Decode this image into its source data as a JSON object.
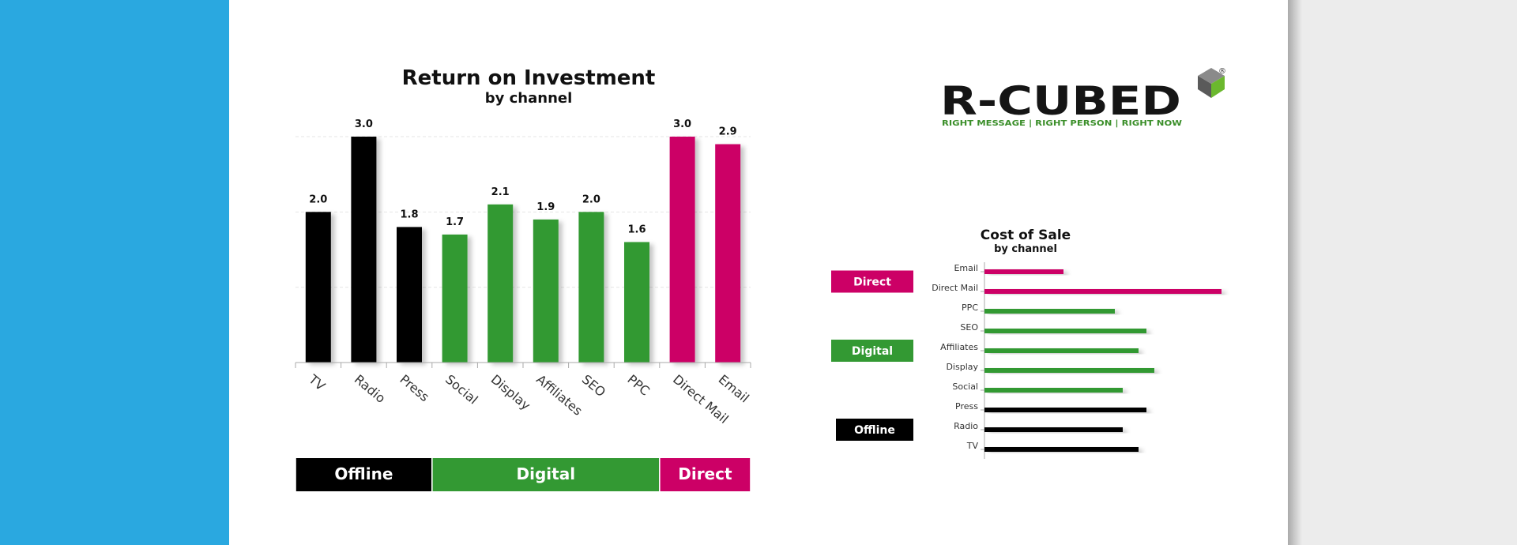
{
  "colors": {
    "background_left": "#2aa8e0",
    "card": "#ffffff",
    "offline": "#000000",
    "digital": "#339933",
    "direct": "#cc0066",
    "grid": "#e5e5e5",
    "axis": "#aaaaaa"
  },
  "logo": {
    "text": "R-CUBED",
    "registered": "®",
    "tagline": "RIGHT MESSAGE | RIGHT PERSON | RIGHT NOW",
    "icon": "green-cube-icon"
  },
  "chart_data": [
    {
      "type": "bar",
      "title": "Return on Investment",
      "subtitle": "by channel",
      "categories": [
        "TV",
        "Radio",
        "Press",
        "Social",
        "Display",
        "Affiliates",
        "SEO",
        "PPC",
        "Direct Mail",
        "Email"
      ],
      "values": [
        2.0,
        3.0,
        1.8,
        1.7,
        2.1,
        1.9,
        2.0,
        1.6,
        3.0,
        2.9
      ],
      "value_labels": [
        "2.0",
        "3.0",
        "1.8",
        "1.7",
        "2.1",
        "1.9",
        "2.0",
        "1.6",
        "3.0",
        "2.9"
      ],
      "groups": [
        "offline",
        "offline",
        "offline",
        "digital",
        "digital",
        "digital",
        "digital",
        "digital",
        "direct",
        "direct"
      ],
      "ylim": [
        0,
        3
      ],
      "grid": true,
      "group_legend": [
        {
          "label": "Offline",
          "group": "offline",
          "from": 0,
          "to": 2
        },
        {
          "label": "Digital",
          "group": "digital",
          "from": 3,
          "to": 7
        },
        {
          "label": "Direct",
          "group": "direct",
          "from": 8,
          "to": 9
        }
      ]
    },
    {
      "type": "bar",
      "orientation": "horizontal",
      "title": "Cost of Sale",
      "subtitle": "by channel",
      "categories": [
        "Email",
        "Direct Mail",
        "PPC",
        "SEO",
        "Affiliates",
        "Display",
        "Social",
        "Press",
        "Radio",
        "TV"
      ],
      "values": [
        20,
        60,
        33,
        41,
        39,
        43,
        35,
        41,
        35,
        39
      ],
      "groups": [
        "direct",
        "direct",
        "digital",
        "digital",
        "digital",
        "digital",
        "digital",
        "offline",
        "offline",
        "offline"
      ],
      "xlim": [
        0,
        60
      ],
      "group_legend": [
        {
          "label": "Direct",
          "group": "direct",
          "from": 0,
          "to": 1
        },
        {
          "label": "Digital",
          "group": "digital",
          "from": 2,
          "to": 6
        },
        {
          "label": "Offline",
          "group": "offline",
          "from": 7,
          "to": 9
        }
      ]
    }
  ]
}
